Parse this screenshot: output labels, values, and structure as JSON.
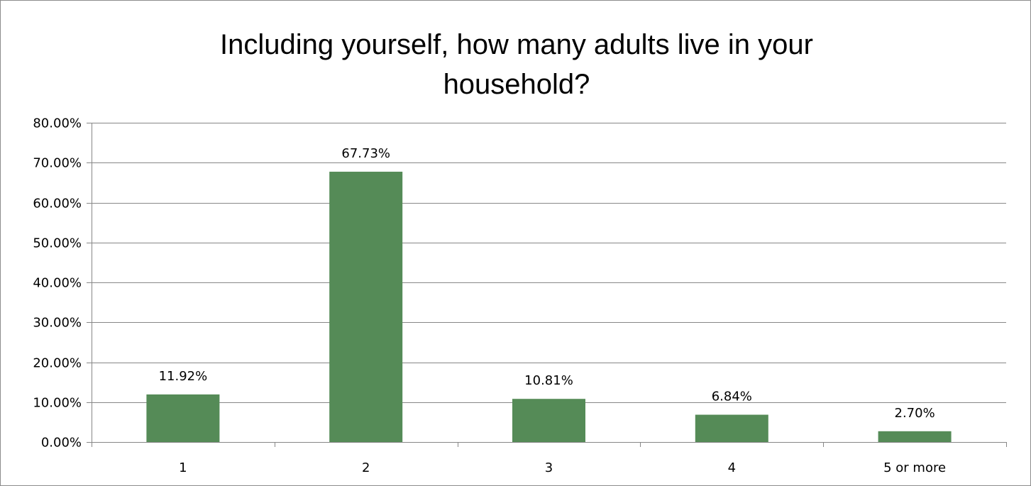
{
  "chart_data": {
    "type": "bar",
    "title": "Including yourself, how many adults live in your household?",
    "title_lines": [
      "Including yourself, how many adults live in your",
      "household?"
    ],
    "categories": [
      "1",
      "2",
      "3",
      "4",
      "5 or more"
    ],
    "values": [
      11.92,
      67.73,
      10.81,
      6.84,
      2.7
    ],
    "value_labels": [
      "11.92%",
      "67.73%",
      "10.81%",
      "6.84%",
      "2.70%"
    ],
    "ylim": [
      0,
      80
    ],
    "y_ticks": [
      0,
      10,
      20,
      30,
      40,
      50,
      60,
      70,
      80
    ],
    "y_tick_labels": [
      "0.00%",
      "10.00%",
      "20.00%",
      "30.00%",
      "40.00%",
      "50.00%",
      "60.00%",
      "70.00%",
      "80.00%"
    ],
    "xlabel": "",
    "ylabel": "",
    "grid": true,
    "legend": "none",
    "bar_color": "#558b57"
  }
}
